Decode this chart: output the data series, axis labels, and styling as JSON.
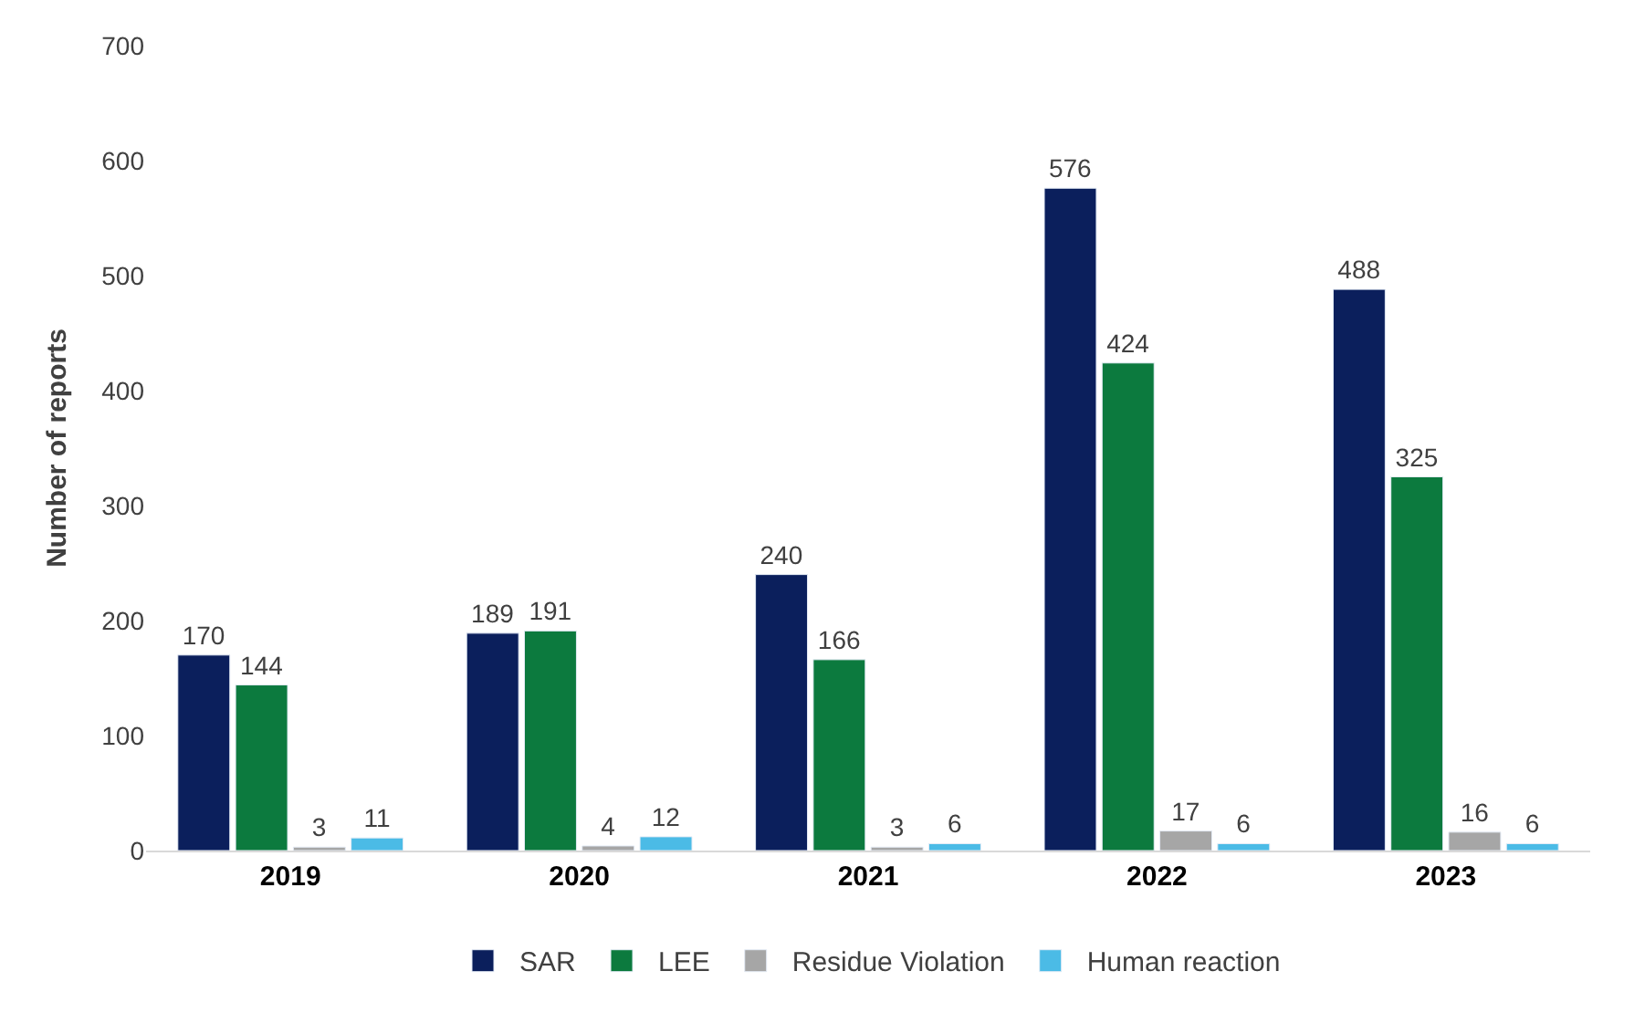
{
  "chart_data": {
    "type": "bar",
    "ylabel": "Number of reports",
    "categories": [
      "2019",
      "2020",
      "2021",
      "2022",
      "2023"
    ],
    "series": [
      {
        "name": "SAR",
        "color": "#0b1f5c",
        "values": [
          170,
          189,
          240,
          576,
          488
        ]
      },
      {
        "name": "LEE",
        "color": "#0c7a3e",
        "values": [
          144,
          191,
          166,
          424,
          325
        ]
      },
      {
        "name": "Residue Violation",
        "color": "#a6a6a6",
        "values": [
          3,
          4,
          3,
          17,
          16
        ]
      },
      {
        "name": "Human reaction",
        "color": "#4bbbe6",
        "values": [
          11,
          12,
          6,
          6,
          6
        ]
      }
    ],
    "ylim": [
      0,
      700
    ],
    "yticks": [
      0,
      100,
      200,
      300,
      400,
      500,
      600,
      700
    ],
    "data_labels": true,
    "legend": "bottom"
  }
}
